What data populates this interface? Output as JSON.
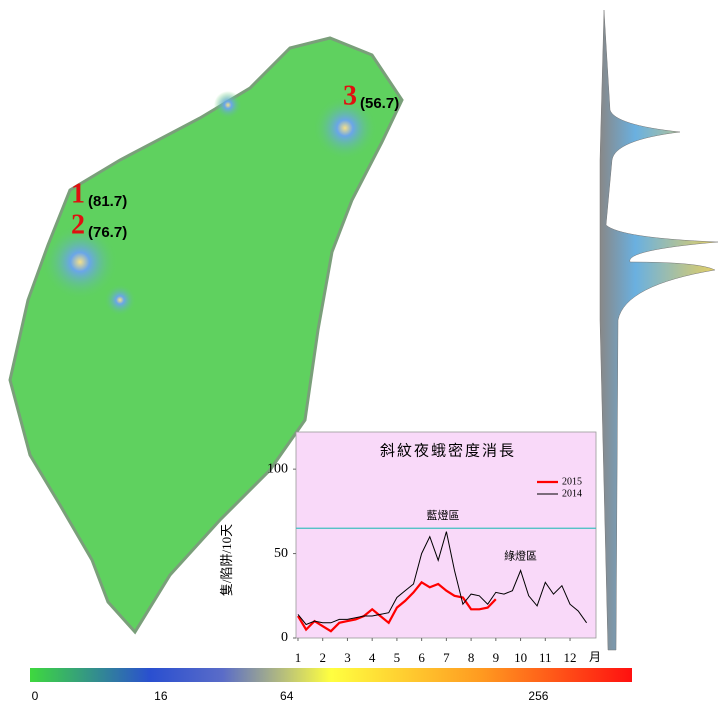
{
  "map": {
    "labels": [
      {
        "rank": 1,
        "value_label": "(81.7)"
      },
      {
        "rank": 2,
        "value_label": "(76.7)"
      },
      {
        "rank": 3,
        "value_label": "(56.7)"
      }
    ]
  },
  "colorbar": {
    "ticks": [
      0,
      16,
      64,
      256
    ],
    "lim": [
      0,
      360
    ],
    "scale": "sqrt"
  },
  "chart_data": {
    "type": "line",
    "title": "斜紋夜蛾密度消長",
    "y_label": "隻/陷阱/10天",
    "x_unit": "月",
    "x": [
      1,
      1.33,
      1.67,
      2,
      2.33,
      2.67,
      3,
      3.33,
      3.67,
      4,
      4.33,
      4.67,
      5,
      5.33,
      5.67,
      6,
      6.33,
      6.67,
      7,
      7.33,
      7.67,
      8,
      8.33,
      8.67,
      9,
      9.33,
      9.67,
      10,
      10.33,
      10.67,
      11,
      11.33,
      11.67,
      12,
      12.33,
      12.67
    ],
    "series": [
      {
        "name": "2015",
        "color": "#ff0000",
        "width": 2.2,
        "values": [
          13,
          5,
          10,
          7,
          4,
          9,
          10,
          11,
          13,
          17,
          13,
          9,
          18,
          22,
          27,
          33,
          30,
          32,
          28,
          25,
          24,
          17,
          17,
          18,
          23,
          null,
          null,
          null,
          null,
          null,
          null,
          null,
          null,
          null,
          null,
          null
        ]
      },
      {
        "name": "2014",
        "color": "#000000",
        "width": 1,
        "values": [
          14,
          8,
          10,
          9,
          9,
          11,
          11,
          12,
          13,
          13,
          14,
          15,
          24,
          28,
          32,
          50,
          60,
          46,
          63,
          40,
          20,
          26,
          25,
          20,
          27,
          26,
          28,
          40,
          25,
          19,
          33,
          26,
          31,
          20,
          16,
          9
        ]
      }
    ],
    "xlim": [
      0.92,
      13.05
    ],
    "xticks": [
      1,
      2,
      3,
      4,
      5,
      6,
      7,
      8,
      9,
      10,
      11,
      12
    ],
    "ylim": [
      0,
      122
    ],
    "yticks": [
      0,
      50,
      100
    ],
    "threshold": {
      "value": 65,
      "label": "藍燈區",
      "color": "#3fbfbf"
    },
    "annotations": [
      {
        "text": "綠燈區",
        "x": 10,
        "y": 48
      }
    ],
    "background": "#f9d9f9",
    "legend": "upper right"
  }
}
